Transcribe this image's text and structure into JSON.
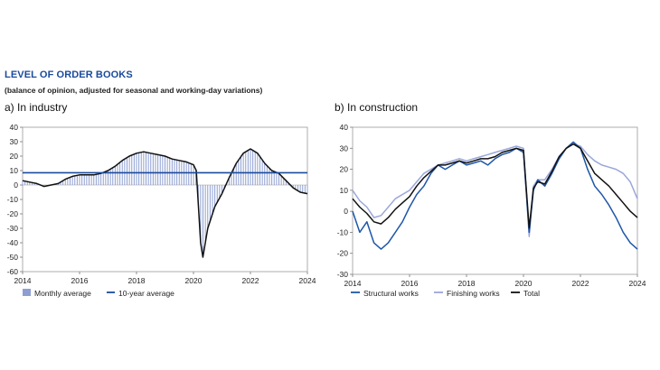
{
  "title": "LEVEL OF ORDER BOOKS",
  "subtitle": "(balance of opinion, adjusted for seasonal and working-day variations)",
  "colors": {
    "title": "#1a4a9c",
    "monthly": "#8d9fd2",
    "ten_year": "#1a4a9c",
    "structural": "#1f56a8",
    "finishing": "#9aa6db",
    "total": "#111111"
  },
  "chart_data": [
    {
      "type": "bar",
      "panel_title": "a)  In industry",
      "xlim": [
        2014,
        2024
      ],
      "ylim": [
        -60,
        40
      ],
      "xticks": [
        "2014",
        "2016",
        "2018",
        "2020",
        "2022",
        "2024"
      ],
      "yticks": [
        "40",
        "30",
        "20",
        "10",
        "0",
        "-10",
        "-20",
        "-30",
        "-40",
        "-50",
        "-60"
      ],
      "legend": [
        "Monthly average",
        "10-year average"
      ],
      "ten_year_average": 8.5,
      "series": [
        {
          "name": "Monthly average",
          "points": [
            [
              2014.0,
              3
            ],
            [
              2014.25,
              2
            ],
            [
              2014.5,
              1
            ],
            [
              2014.75,
              -1
            ],
            [
              2015.0,
              0
            ],
            [
              2015.25,
              1
            ],
            [
              2015.5,
              4
            ],
            [
              2015.75,
              6
            ],
            [
              2016.0,
              7
            ],
            [
              2016.25,
              7
            ],
            [
              2016.5,
              7
            ],
            [
              2016.75,
              8
            ],
            [
              2017.0,
              10
            ],
            [
              2017.25,
              13
            ],
            [
              2017.5,
              17
            ],
            [
              2017.75,
              20
            ],
            [
              2018.0,
              22
            ],
            [
              2018.25,
              23
            ],
            [
              2018.5,
              22
            ],
            [
              2018.75,
              21
            ],
            [
              2019.0,
              20
            ],
            [
              2019.25,
              18
            ],
            [
              2019.5,
              17
            ],
            [
              2019.75,
              16
            ],
            [
              2020.0,
              14
            ],
            [
              2020.1,
              10
            ],
            [
              2020.25,
              -40
            ],
            [
              2020.33,
              -50
            ],
            [
              2020.5,
              -30
            ],
            [
              2020.75,
              -15
            ],
            [
              2021.0,
              -6
            ],
            [
              2021.25,
              5
            ],
            [
              2021.5,
              15
            ],
            [
              2021.75,
              22
            ],
            [
              2022.0,
              25
            ],
            [
              2022.25,
              22
            ],
            [
              2022.5,
              15
            ],
            [
              2022.75,
              10
            ],
            [
              2023.0,
              8
            ],
            [
              2023.25,
              3
            ],
            [
              2023.5,
              -2
            ],
            [
              2023.75,
              -5
            ],
            [
              2024.0,
              -6
            ]
          ]
        }
      ]
    },
    {
      "type": "line",
      "panel_title": "b)  In construction",
      "xlim": [
        2014,
        2024
      ],
      "ylim": [
        -30,
        40
      ],
      "xticks": [
        "2014",
        "2016",
        "2018",
        "2020",
        "2022",
        "2024"
      ],
      "yticks": [
        "40",
        "30",
        "20",
        "10",
        "0",
        "-10",
        "-20",
        "-30"
      ],
      "legend": [
        "Structural works",
        "Finishing works",
        "Total"
      ],
      "series": [
        {
          "name": "Structural works",
          "points": [
            [
              2014.0,
              0
            ],
            [
              2014.25,
              -10
            ],
            [
              2014.5,
              -5
            ],
            [
              2014.75,
              -15
            ],
            [
              2015.0,
              -18
            ],
            [
              2015.25,
              -15
            ],
            [
              2015.5,
              -10
            ],
            [
              2015.75,
              -5
            ],
            [
              2016.0,
              2
            ],
            [
              2016.25,
              8
            ],
            [
              2016.5,
              12
            ],
            [
              2016.75,
              18
            ],
            [
              2017.0,
              22
            ],
            [
              2017.25,
              20
            ],
            [
              2017.5,
              22
            ],
            [
              2017.75,
              24
            ],
            [
              2018.0,
              22
            ],
            [
              2018.25,
              23
            ],
            [
              2018.5,
              24
            ],
            [
              2018.75,
              22
            ],
            [
              2019.0,
              25
            ],
            [
              2019.25,
              27
            ],
            [
              2019.5,
              28
            ],
            [
              2019.75,
              30
            ],
            [
              2020.0,
              28
            ],
            [
              2020.2,
              -10
            ],
            [
              2020.35,
              10
            ],
            [
              2020.5,
              15
            ],
            [
              2020.75,
              12
            ],
            [
              2021.0,
              18
            ],
            [
              2021.25,
              25
            ],
            [
              2021.5,
              30
            ],
            [
              2021.75,
              33
            ],
            [
              2022.0,
              30
            ],
            [
              2022.25,
              20
            ],
            [
              2022.5,
              12
            ],
            [
              2022.75,
              8
            ],
            [
              2023.0,
              3
            ],
            [
              2023.25,
              -3
            ],
            [
              2023.5,
              -10
            ],
            [
              2023.75,
              -15
            ],
            [
              2024.0,
              -18
            ]
          ]
        },
        {
          "name": "Finishing works",
          "points": [
            [
              2014.0,
              10
            ],
            [
              2014.25,
              5
            ],
            [
              2014.5,
              2
            ],
            [
              2014.75,
              -3
            ],
            [
              2015.0,
              -2
            ],
            [
              2015.25,
              2
            ],
            [
              2015.5,
              6
            ],
            [
              2015.75,
              8
            ],
            [
              2016.0,
              10
            ],
            [
              2016.25,
              14
            ],
            [
              2016.5,
              18
            ],
            [
              2016.75,
              20
            ],
            [
              2017.0,
              22
            ],
            [
              2017.25,
              23
            ],
            [
              2017.5,
              24
            ],
            [
              2017.75,
              25
            ],
            [
              2018.0,
              24
            ],
            [
              2018.25,
              25
            ],
            [
              2018.5,
              26
            ],
            [
              2018.75,
              27
            ],
            [
              2019.0,
              28
            ],
            [
              2019.25,
              29
            ],
            [
              2019.5,
              30
            ],
            [
              2019.75,
              31
            ],
            [
              2020.0,
              30
            ],
            [
              2020.2,
              -12
            ],
            [
              2020.35,
              12
            ],
            [
              2020.5,
              15
            ],
            [
              2020.75,
              15
            ],
            [
              2021.0,
              20
            ],
            [
              2021.25,
              26
            ],
            [
              2021.5,
              30
            ],
            [
              2021.75,
              32
            ],
            [
              2022.0,
              31
            ],
            [
              2022.25,
              27
            ],
            [
              2022.5,
              24
            ],
            [
              2022.75,
              22
            ],
            [
              2023.0,
              21
            ],
            [
              2023.25,
              20
            ],
            [
              2023.5,
              18
            ],
            [
              2023.75,
              14
            ],
            [
              2024.0,
              6
            ]
          ]
        },
        {
          "name": "Total",
          "points": [
            [
              2014.0,
              6
            ],
            [
              2014.25,
              2
            ],
            [
              2014.5,
              -1
            ],
            [
              2014.75,
              -5
            ],
            [
              2015.0,
              -6
            ],
            [
              2015.25,
              -3
            ],
            [
              2015.5,
              1
            ],
            [
              2015.75,
              4
            ],
            [
              2016.0,
              7
            ],
            [
              2016.25,
              12
            ],
            [
              2016.5,
              16
            ],
            [
              2016.75,
              19
            ],
            [
              2017.0,
              22
            ],
            [
              2017.25,
              22
            ],
            [
              2017.5,
              23
            ],
            [
              2017.75,
              24
            ],
            [
              2018.0,
              23
            ],
            [
              2018.25,
              24
            ],
            [
              2018.5,
              25
            ],
            [
              2018.75,
              25
            ],
            [
              2019.0,
              26
            ],
            [
              2019.25,
              28
            ],
            [
              2019.5,
              29
            ],
            [
              2019.75,
              30
            ],
            [
              2020.0,
              29
            ],
            [
              2020.2,
              -8
            ],
            [
              2020.35,
              11
            ],
            [
              2020.5,
              14
            ],
            [
              2020.75,
              13
            ],
            [
              2021.0,
              19
            ],
            [
              2021.25,
              26
            ],
            [
              2021.5,
              30
            ],
            [
              2021.75,
              32
            ],
            [
              2022.0,
              30
            ],
            [
              2022.25,
              24
            ],
            [
              2022.5,
              18
            ],
            [
              2022.75,
              15
            ],
            [
              2023.0,
              12
            ],
            [
              2023.25,
              8
            ],
            [
              2023.5,
              4
            ],
            [
              2023.75,
              0
            ],
            [
              2024.0,
              -3
            ]
          ]
        }
      ]
    }
  ]
}
